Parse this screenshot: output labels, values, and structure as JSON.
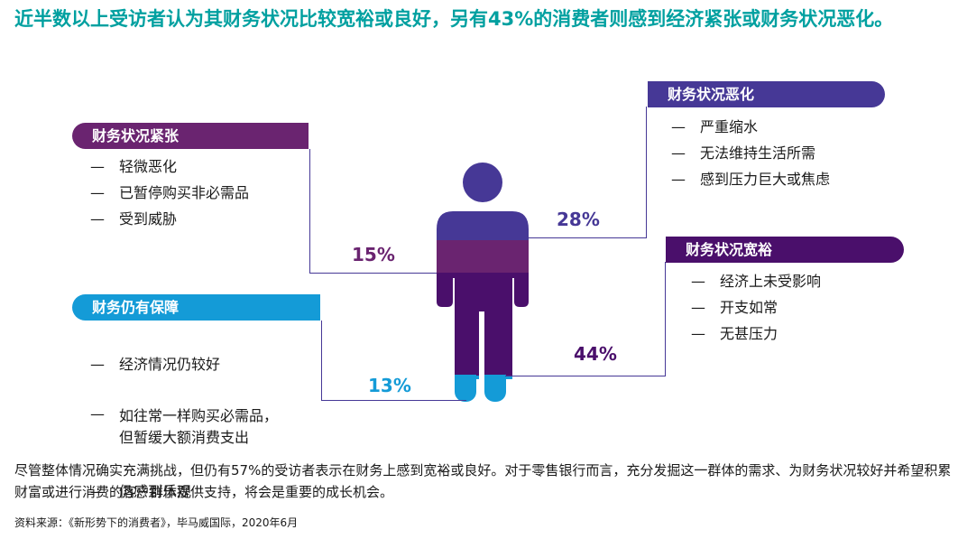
{
  "title": "近半数以上受访者认为其财务状况比较宽裕或良好，另有43%的消费者则感到经济紧张或财务状况恶化。",
  "segments": {
    "strained": {
      "label": "财务状况紧张",
      "color": "#6a2470",
      "percent": "15%",
      "items": [
        "轻微恶化",
        "已暂停购买非必需品",
        "受到威胁"
      ]
    },
    "worsened": {
      "label": "财务状况恶化",
      "color": "#463896",
      "percent": "28%",
      "items": [
        "严重缩水",
        "无法维持生活所需",
        "感到压力巨大或焦虑"
      ]
    },
    "secure": {
      "label": "财务仍有保障",
      "color": "#149bd7",
      "percent": "13%",
      "items": [
        "经济情况仍较好",
        "如往常一样购买必需品，\n但暂缓大额消费支出",
        "仍感到乐观"
      ]
    },
    "comfortable": {
      "label": "财务状况宽裕",
      "color": "#4a0f6b",
      "percent": "44%",
      "items": [
        "经济上未受影响",
        "开支如常",
        "无甚压力"
      ]
    }
  },
  "footer": "尽管整体情况确实充满挑战，但仍有57%的受访者表示在财务上感到宽裕或良好。对于零售银行而言，充分发掘这一群体的需求、为财务状况较好并希望积累财富或进行消费的客户群体提供支持，将会是重要的成长机会。",
  "source": "资料来源：《新形势下的消费者》，毕马威国际，2020年6月",
  "colors": {
    "title": "#00a0a0",
    "lines": "#463896"
  }
}
